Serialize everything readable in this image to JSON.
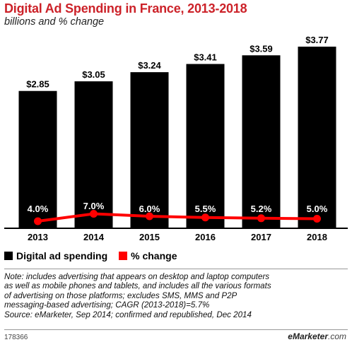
{
  "header": {
    "title": "Digital Ad Spending in France, 2013-2018",
    "subtitle": "billions and % change"
  },
  "legend": {
    "items": [
      {
        "label": "Digital ad spending",
        "color": "#000000"
      },
      {
        "label": "% change",
        "color": "#ff0000"
      }
    ]
  },
  "note": {
    "lines": [
      "Note: includes advertising that appears on desktop and laptop computers",
      "as well as mobile phones and tablets, and includes all the various formats",
      "of advertising on those platforms; excludes SMS, MMS and P2P",
      "messaging-based advertising; CAGR (2013-2018)=5.7%",
      "Source: eMarketer, Sep 2014; confirmed and republished, Dec 2014"
    ]
  },
  "footer": {
    "id": "178366",
    "logo_brand": "eMarketer",
    "logo_domain": ".com"
  },
  "chart_data": {
    "type": "bar",
    "categories": [
      "2013",
      "2014",
      "2015",
      "2016",
      "2017",
      "2018"
    ],
    "series": [
      {
        "name": "Digital ad spending",
        "type": "bar",
        "color": "#000000",
        "values": [
          2.85,
          3.05,
          3.24,
          3.41,
          3.59,
          3.77
        ],
        "labels": [
          "$2.85",
          "$3.05",
          "$3.24",
          "$3.41",
          "$3.59",
          "$3.77"
        ]
      },
      {
        "name": "% change",
        "type": "line",
        "color": "#ff0000",
        "values": [
          4.0,
          7.0,
          6.0,
          5.5,
          5.2,
          5.0
        ],
        "labels": [
          "4.0%",
          "7.0%",
          "6.0%",
          "5.5%",
          "5.2%",
          "5.0%"
        ]
      }
    ],
    "ylim": [
      0,
      3.77
    ],
    "grid": false,
    "legend_position": "bottom-left"
  }
}
